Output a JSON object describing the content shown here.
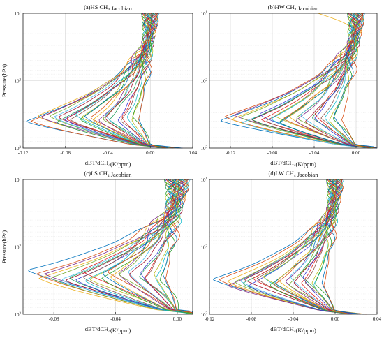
{
  "chart_data": [
    {
      "type": "line",
      "title": "(a)HS CH4 Jacobian",
      "xlabel": "dBT/dCH4(K/ppm)",
      "ylabel": "Pressure(hPa)",
      "y_scale": "log",
      "y_reversed": true,
      "ylim": [
        1000,
        10
      ],
      "xlim": [
        -0.12,
        0.04
      ],
      "xticks": [
        "-0.12",
        "-0.08",
        "-0.04",
        "0.00",
        "0.04"
      ],
      "grid": true,
      "series_count": 30,
      "peak_min_range": [
        -0.115,
        -0.01
      ],
      "peak_pressure_range": [
        250,
        420
      ]
    },
    {
      "type": "line",
      "title": "(b)HW CH4 Jacobian",
      "xlabel": "dBT/dCH4(K/ppm)",
      "ylabel": "",
      "y_scale": "log",
      "y_reversed": true,
      "ylim": [
        1000,
        10
      ],
      "xlim": [
        -0.14,
        0.02
      ],
      "xticks": [
        "-0.12",
        "-0.08",
        "-0.04",
        "0.00"
      ],
      "grid": true,
      "series_count": 30,
      "peak_min_range": [
        -0.13,
        -0.015
      ],
      "peak_pressure_range": [
        250,
        420
      ]
    },
    {
      "type": "line",
      "title": "(c)LS CH4 Jacobian",
      "xlabel": "dBT/dCH4(K/ppm)",
      "ylabel": "Pressure(hPa)",
      "y_scale": "log",
      "y_reversed": true,
      "ylim": [
        1000,
        10
      ],
      "xlim": [
        -0.1,
        0.01
      ],
      "xticks": [
        "-0.08",
        "-0.04",
        "0.00"
      ],
      "grid": true,
      "series_count": 30,
      "peak_min_range": [
        -0.095,
        -0.005
      ],
      "peak_pressure_range": [
        160,
        320
      ]
    },
    {
      "type": "line",
      "title": "(d)LW CH4 Jacobian",
      "xlabel": "dBT/dCH4(K/ppm)",
      "ylabel": "",
      "y_scale": "log",
      "y_reversed": true,
      "ylim": [
        1000,
        10
      ],
      "xlim": [
        -0.12,
        0.04
      ],
      "xticks": [
        "-0.12",
        "-0.08",
        "-0.04",
        "0.00",
        "0.04"
      ],
      "grid": true,
      "series_count": 30,
      "peak_min_range": [
        -0.115,
        -0.01
      ],
      "peak_pressure_range": [
        180,
        380
      ]
    }
  ],
  "palette": [
    "#0072BD",
    "#D95319",
    "#EDB120",
    "#7E2F8E",
    "#77AC30",
    "#4DBEEE",
    "#A2142F",
    "#1f9e5b",
    "#3b3bd6",
    "#e02020",
    "#8c564b",
    "#17becf",
    "#bcbd22",
    "#2ca02c"
  ]
}
